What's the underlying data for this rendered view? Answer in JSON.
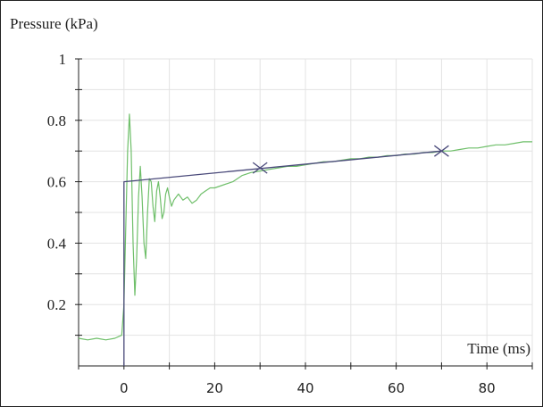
{
  "chart_data": {
    "type": "line",
    "ylabel": "Pressure (kPa)",
    "xlabel": "Time (ms)",
    "xlim": [
      -10,
      90
    ],
    "ylim": [
      0,
      1
    ],
    "x_ticks": [
      0,
      20,
      40,
      60,
      80
    ],
    "x_tick_labels": [
      "0",
      "20",
      "40",
      "60",
      "80"
    ],
    "y_ticks": [
      0.2,
      0.4,
      0.6,
      0.8,
      1
    ],
    "y_tick_labels": [
      "0.2",
      "0.4",
      "0.6",
      "0.8",
      "1"
    ],
    "grid": true,
    "colors": {
      "measured": "#6fbf6a",
      "model": "#4a4a7a",
      "grid": "#e3e3e3",
      "axis": "#222222"
    },
    "series": [
      {
        "id": "measured",
        "x": [
          -10,
          -8,
          -6,
          -4,
          -2,
          -0.5,
          0,
          0.4,
          0.8,
          1.2,
          1.6,
          2.0,
          2.4,
          2.8,
          3.2,
          3.6,
          4.0,
          4.4,
          4.8,
          5.2,
          5.6,
          6.0,
          6.4,
          6.8,
          7.2,
          7.6,
          8.0,
          8.4,
          8.8,
          9.2,
          9.6,
          10.0,
          10.5,
          11,
          12,
          13,
          14,
          15,
          16,
          17,
          18,
          19,
          20,
          22,
          24,
          26,
          28,
          30,
          32,
          34,
          36,
          38,
          40,
          42,
          44,
          46,
          48,
          50,
          52,
          54,
          56,
          58,
          60,
          62,
          64,
          66,
          68,
          70,
          72,
          74,
          76,
          78,
          80,
          82,
          84,
          86,
          88,
          90
        ],
        "y": [
          0.09,
          0.085,
          0.09,
          0.085,
          0.09,
          0.1,
          0.2,
          0.45,
          0.7,
          0.82,
          0.7,
          0.4,
          0.23,
          0.35,
          0.55,
          0.65,
          0.55,
          0.4,
          0.35,
          0.5,
          0.61,
          0.6,
          0.52,
          0.47,
          0.57,
          0.6,
          0.55,
          0.48,
          0.5,
          0.56,
          0.58,
          0.55,
          0.52,
          0.54,
          0.56,
          0.54,
          0.55,
          0.53,
          0.54,
          0.56,
          0.57,
          0.58,
          0.58,
          0.59,
          0.6,
          0.62,
          0.63,
          0.635,
          0.64,
          0.645,
          0.65,
          0.65,
          0.655,
          0.66,
          0.665,
          0.665,
          0.67,
          0.675,
          0.675,
          0.68,
          0.68,
          0.685,
          0.685,
          0.69,
          0.69,
          0.695,
          0.695,
          0.7,
          0.7,
          0.705,
          0.71,
          0.71,
          0.715,
          0.72,
          0.72,
          0.725,
          0.73,
          0.73
        ]
      },
      {
        "id": "model",
        "x": [
          0,
          0,
          70
        ],
        "y": [
          0,
          0.6,
          0.7
        ]
      }
    ],
    "markers": [
      {
        "x": 30,
        "y": 0.645,
        "symbol": "x"
      },
      {
        "x": 70,
        "y": 0.7,
        "symbol": "x"
      }
    ]
  }
}
